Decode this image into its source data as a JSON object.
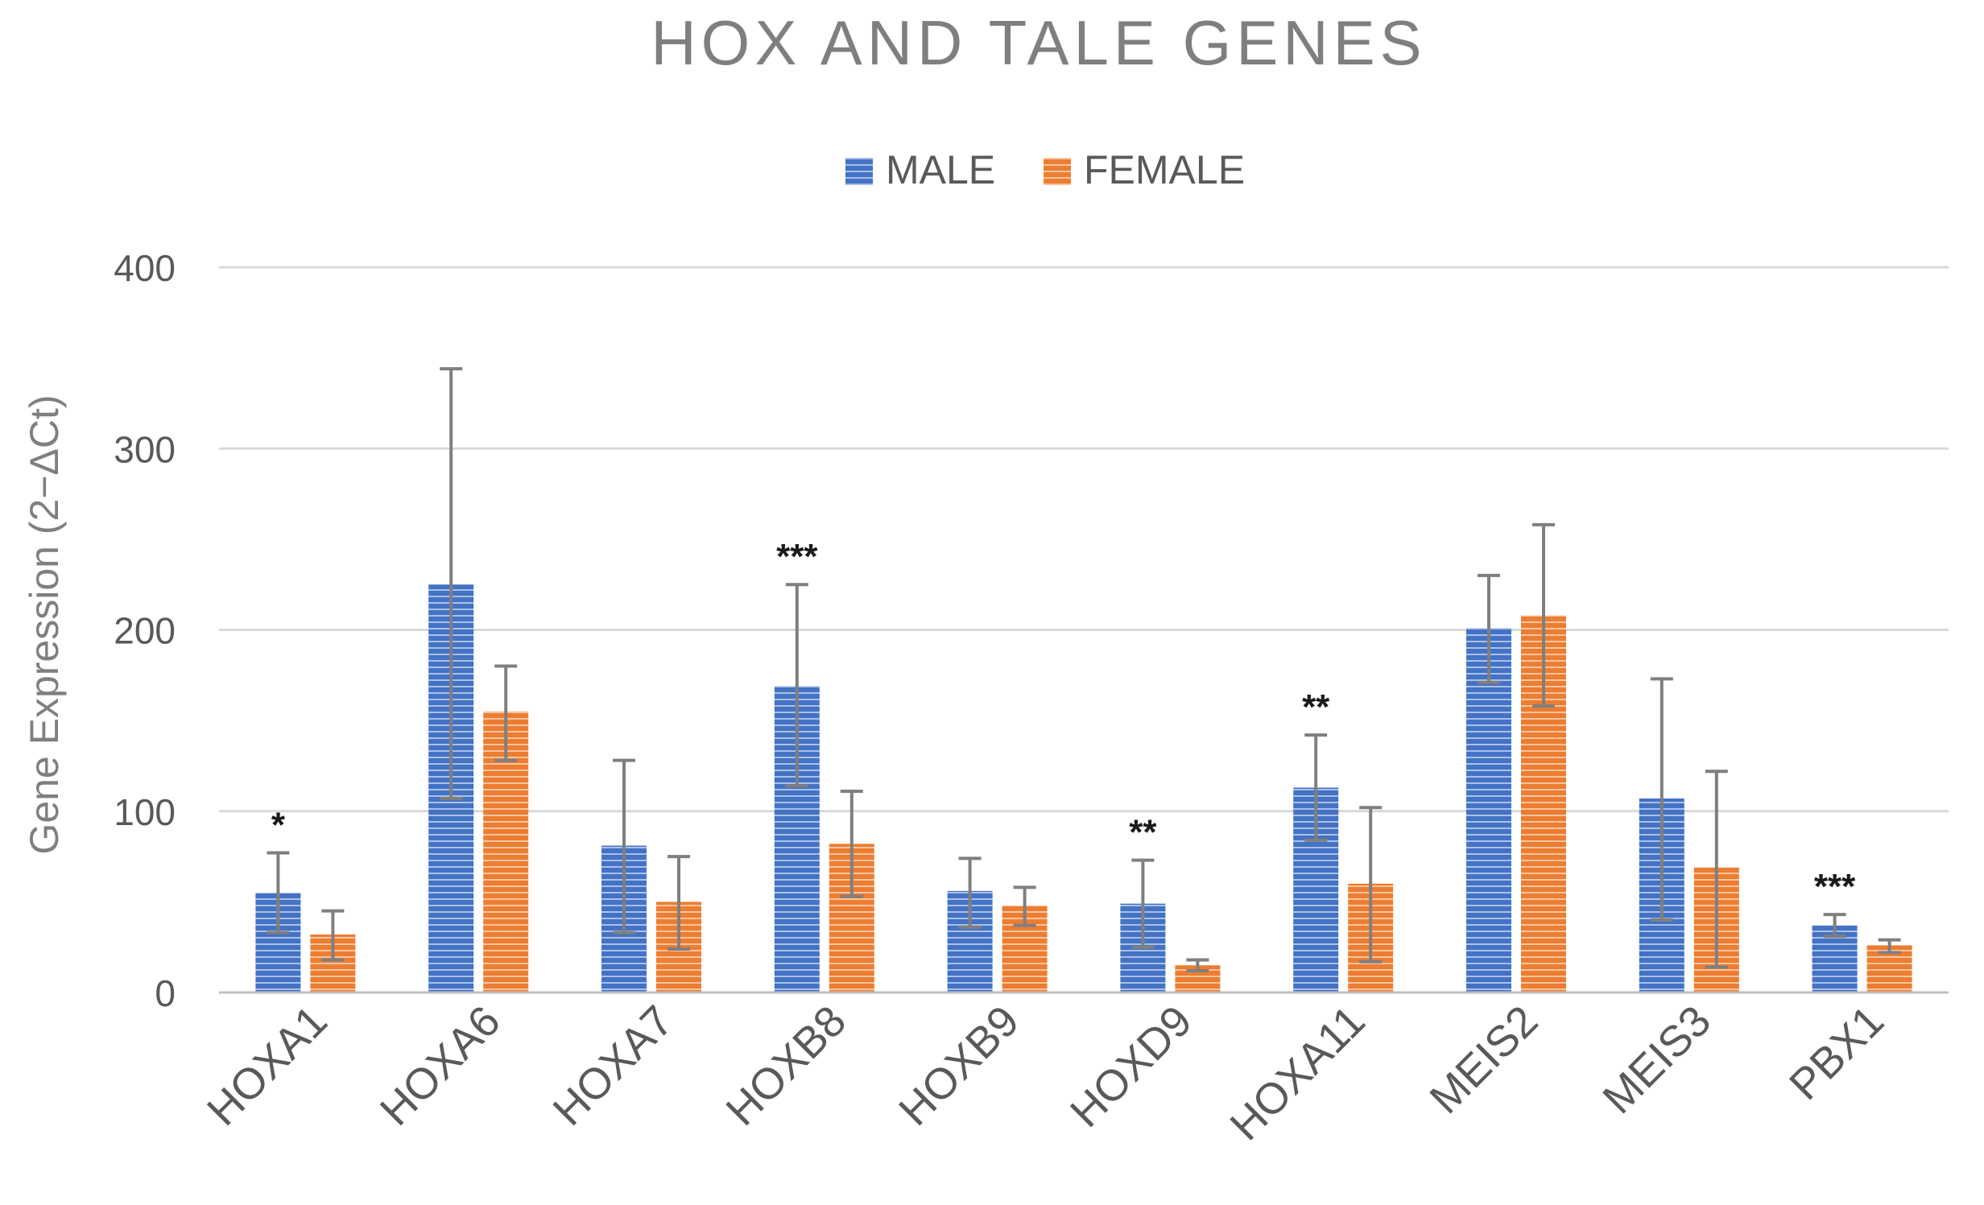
{
  "chart_data": {
    "type": "bar",
    "title": "HOX AND TALE GENES",
    "xlabel": "",
    "ylabel": "Gene Expression (2−ΔCt)",
    "ylim": [
      0,
      400
    ],
    "yticks": [
      0,
      100,
      200,
      300,
      400
    ],
    "ytick_labels": [
      "0",
      "100",
      "200",
      "300",
      "400"
    ],
    "grid": true,
    "legend_position": "top-center",
    "categories": [
      "HOXA1",
      "HOXA6",
      "HOXA7",
      "HOXB8",
      "HOXB9",
      "HOXD9",
      "HOXA11",
      "MEIS2",
      "MEIS3",
      "PBX1"
    ],
    "series": [
      {
        "name": "MALE",
        "color": "#4472c4",
        "values": [
          55,
          225,
          81,
          169,
          56,
          49,
          113,
          201,
          107,
          37
        ],
        "error_low": [
          33,
          107,
          33,
          114,
          36,
          25,
          84,
          171,
          40,
          31
        ],
        "error_high": [
          77,
          344,
          128,
          225,
          74,
          73,
          142,
          230,
          173,
          43
        ]
      },
      {
        "name": "FEMALE",
        "color": "#ed7d31",
        "values": [
          32,
          155,
          50,
          82,
          48,
          15,
          60,
          208,
          69,
          26
        ],
        "error_low": [
          18,
          128,
          24,
          53,
          37,
          12,
          17,
          158,
          14,
          22
        ],
        "error_high": [
          45,
          180,
          75,
          111,
          58,
          18,
          102,
          258,
          122,
          29
        ]
      }
    ],
    "annotations": [
      "*",
      "",
      "",
      "***",
      "",
      "**",
      "**",
      "",
      "",
      "***"
    ]
  }
}
